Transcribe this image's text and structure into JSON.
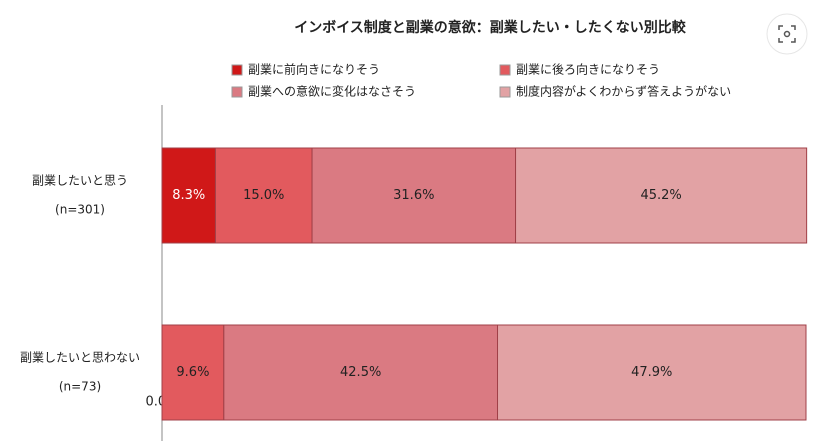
{
  "chart_data": {
    "type": "stacked-bar-horizontal",
    "title": "インボイス制度と副業の意欲：副業したい・したくない別比較",
    "categories": [
      "副業したいと思う",
      "副業したいと思わない"
    ],
    "category_notes": [
      "(n=301)",
      "(n=73)"
    ],
    "xlim": [
      0,
      100
    ],
    "series": [
      {
        "name": "副業に前向きになりそう",
        "color": "#d01818",
        "values": [
          8.3,
          0.0
        ],
        "value_labels": [
          "8.3%",
          "0.0%"
        ]
      },
      {
        "name": "副業に後ろ向きになりそう",
        "color": "#e25a5e",
        "values": [
          15.0,
          9.6
        ],
        "value_labels": [
          "15.0%",
          "9.6%"
        ]
      },
      {
        "name": "副業への意欲に変化はなさそう",
        "color": "#da7a82",
        "values": [
          31.6,
          42.5
        ],
        "value_labels": [
          "31.6%",
          "42.5%"
        ]
      },
      {
        "name": "制度内容がよくわからず答えようがない",
        "color": "#e2a2a4",
        "values": [
          45.2,
          47.9
        ],
        "value_labels": [
          "45.2%",
          "47.9%"
        ]
      }
    ]
  }
}
